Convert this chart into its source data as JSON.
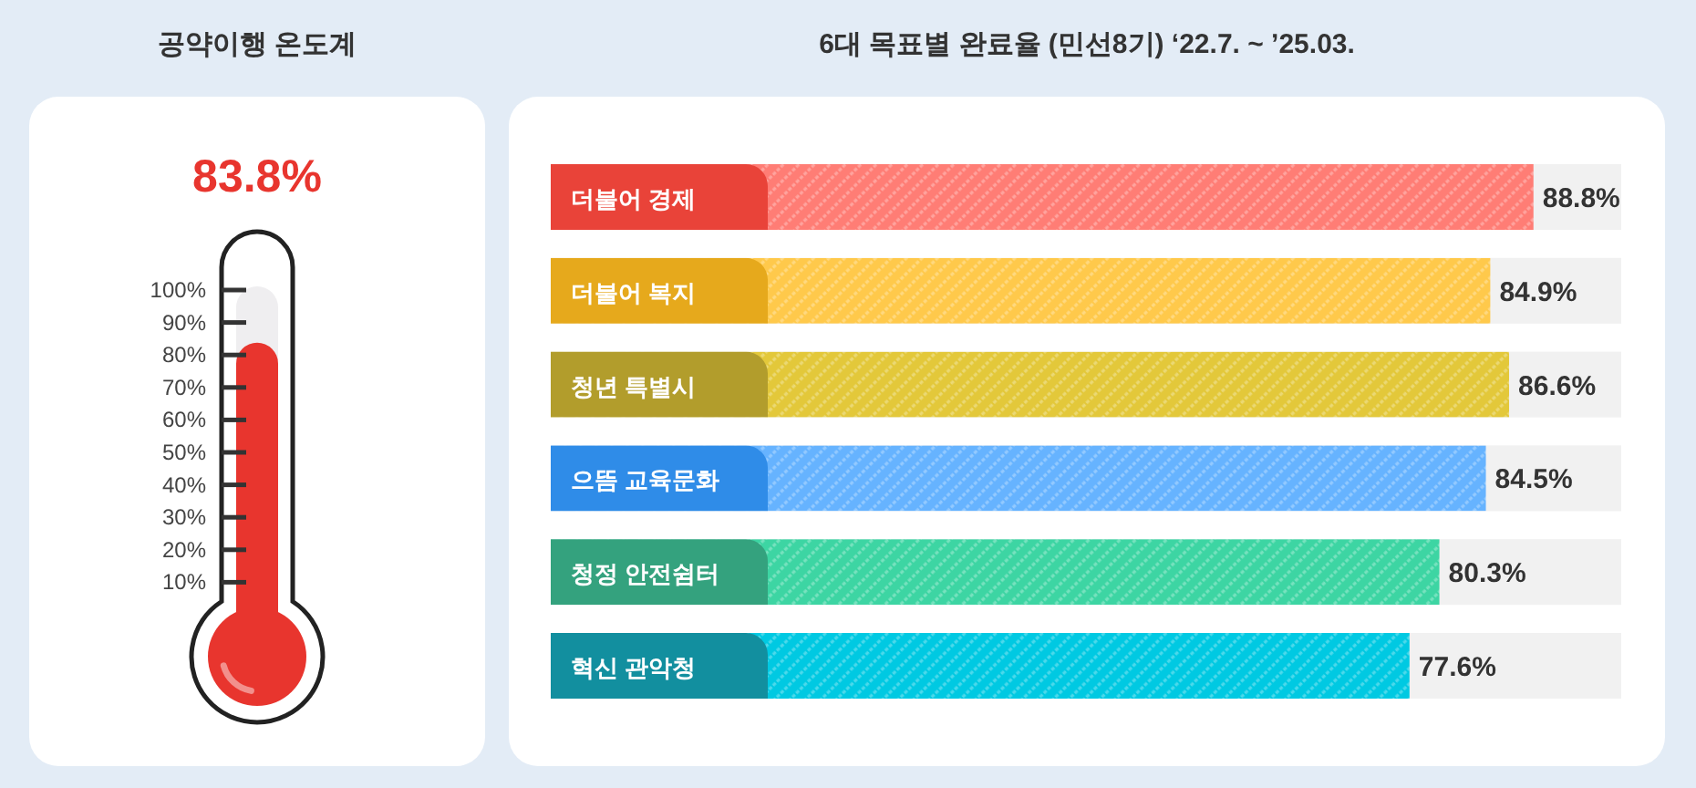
{
  "chart_data": [
    {
      "type": "bar",
      "title": "공약이행 온도계",
      "categories": [
        null
      ],
      "values": [
        83.8
      ],
      "colors": [
        "#e8352e"
      ],
      "value_labels": [
        "83.8%"
      ],
      "ylim": [
        0,
        100
      ],
      "yticks": [
        {
          "value": 10,
          "label": "10%"
        },
        {
          "value": 20,
          "label": "20%"
        },
        {
          "value": 30,
          "label": "30%"
        },
        {
          "value": 40,
          "label": "40%"
        },
        {
          "value": 50,
          "label": "50%"
        },
        {
          "value": 60,
          "label": "60%"
        },
        {
          "value": 70,
          "label": "70%"
        },
        {
          "value": 80,
          "label": "80%"
        },
        {
          "value": 90,
          "label": "90%"
        },
        {
          "value": 100,
          "label": "100%"
        }
      ],
      "tick_labels": "y"
    },
    {
      "type": "bar",
      "orientation": "horizontal",
      "title": "6대 목표별 완료율 (민선8기) ‘22.7. ~ ’25.03.",
      "categories": [
        "더불어 경제",
        "더불어 복지",
        "청년 특별시",
        "으뜸 교육문화",
        "청정 안전쉼터",
        "혁신 관악청"
      ],
      "values": [
        88.8,
        84.9,
        86.6,
        84.5,
        80.3,
        77.6
      ],
      "colors": [
        "#ff7d75",
        "#ffc94b",
        "#e3c83a",
        "#66b3ff",
        "#3dd5a3",
        "#00c9e2"
      ],
      "value_labels": [
        "88.8%",
        "84.9%",
        "86.6%",
        "84.5%",
        "80.3%",
        "77.6%"
      ]
    }
  ]
}
